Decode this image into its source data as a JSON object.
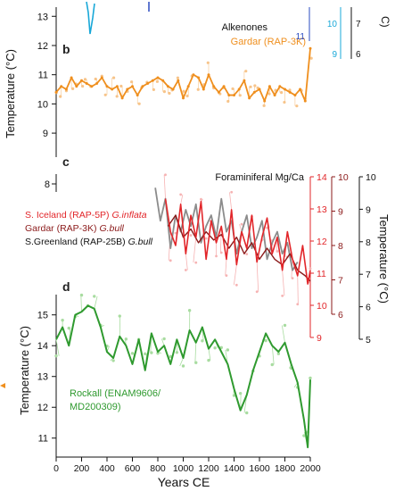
{
  "colors": {
    "orange": "#ef8f1e",
    "orange_light": "#f7c48a",
    "red": "#e2262a",
    "darkred": "#8b1a1a",
    "red_light": "#f6b3b3",
    "gray": "#8c8c8c",
    "green": "#2f9a2f",
    "green_light": "#a8dca0",
    "cyan": "#19a8d8",
    "blue": "#2a4bc1",
    "black": "#111111"
  },
  "panels": {
    "b": {
      "label": "b",
      "title_line1": "Alkenones",
      "title_line2": "Gardar (RAP-3K)",
      "ylabel": "Temperature (°C)",
      "yticks": [
        "13",
        "12",
        "11",
        "10",
        "9"
      ],
      "right_axis_blue_tick": "11",
      "right_axis_cyan_ticks": [
        "10",
        "9"
      ],
      "right_axis_black_ticks": [
        "7",
        "6"
      ],
      "right_axis_unit_fragment": "C)"
    },
    "c": {
      "label": "c",
      "title": "Foraminiferal Mg/Ca",
      "legend": [
        {
          "text": "S. Iceland (RAP-5P) ",
          "species": "G.inflata",
          "color_key": "red"
        },
        {
          "text": "Gardar (RAP-3K) ",
          "species": "G.bull",
          "color_key": "darkred"
        },
        {
          "text": "S.Greenland (RAP-25B) ",
          "species": "G.bull",
          "color_key": "black"
        }
      ],
      "left_ylabel_tick": "8",
      "axis_red_ticks": [
        "14",
        "13",
        "12",
        "11",
        "10",
        "9"
      ],
      "axis_darkred_ticks": [
        "10",
        "9",
        "8",
        "7",
        "6"
      ],
      "axis_black_ticks": [
        "10",
        "9",
        "8",
        "7",
        "6",
        "5"
      ],
      "right_ylabel": "Temperature (°C)"
    },
    "d": {
      "label": "d",
      "legend_line1": "Rockall (ENAM9606/",
      "legend_line2": "MD200309)",
      "ylabel": "Temperature (°C)",
      "yticks": [
        "15",
        "14",
        "13",
        "12",
        "11"
      ]
    }
  },
  "xaxis": {
    "label": "Years CE",
    "ticks": [
      "0",
      "200",
      "400",
      "600",
      "800",
      "1000",
      "1200",
      "1400",
      "1600",
      "1800",
      "2000"
    ]
  },
  "chart_data": [
    {
      "type": "line",
      "panel": "b",
      "xlim": [
        0,
        2000
      ],
      "ylim": [
        8.3,
        13.1
      ],
      "series": [
        {
          "name": "Gardar (RAP-3K)",
          "x": [
            0,
            40,
            80,
            120,
            160,
            200,
            240,
            280,
            320,
            360,
            400,
            440,
            480,
            520,
            560,
            600,
            640,
            680,
            720,
            760,
            800,
            840,
            880,
            920,
            960,
            1000,
            1040,
            1080,
            1120,
            1160,
            1200,
            1240,
            1280,
            1320,
            1360,
            1400,
            1440,
            1480,
            1520,
            1560,
            1600,
            1640,
            1680,
            1720,
            1760,
            1800,
            1840,
            1880,
            1920,
            1960,
            2000
          ],
          "y": [
            10.4,
            10.6,
            10.5,
            10.9,
            10.6,
            10.8,
            10.7,
            10.6,
            10.7,
            10.9,
            10.6,
            10.5,
            10.6,
            10.2,
            10.5,
            10.6,
            10.3,
            10.6,
            10.7,
            10.8,
            10.9,
            10.8,
            10.6,
            10.5,
            10.8,
            10.2,
            10.6,
            11.0,
            10.9,
            10.5,
            11.0,
            10.6,
            10.4,
            10.6,
            10.3,
            10.3,
            10.5,
            10.8,
            10.2,
            10.4,
            10.5,
            10.1,
            10.6,
            10.3,
            10.6,
            10.5,
            10.4,
            10.3,
            10.5,
            10.1,
            11.9
          ]
        }
      ]
    },
    {
      "type": "line",
      "panel": "c",
      "xlim": [
        0,
        2000
      ],
      "ylim": [
        9,
        14
      ],
      "series": [
        {
          "name": "S. Iceland (RAP-5P) G.inflata",
          "x": [
            860,
            900,
            940,
            980,
            1020,
            1060,
            1100,
            1140,
            1180,
            1220,
            1260,
            1300,
            1340,
            1380,
            1420,
            1460,
            1500,
            1540,
            1580,
            1620,
            1660,
            1700,
            1740,
            1780,
            1820,
            1860,
            1900,
            1940,
            1980,
            2000
          ],
          "y": [
            13.2,
            12.0,
            11.5,
            13.0,
            11.2,
            12.6,
            11.8,
            13.1,
            11.0,
            12.4,
            11.6,
            12.2,
            11.0,
            12.8,
            10.8,
            12.0,
            11.4,
            12.6,
            10.9,
            11.8,
            12.5,
            11.2,
            11.8,
            10.6,
            12.0,
            11.0,
            10.4,
            11.5,
            10.1,
            10.6
          ]
        },
        {
          "name": "Gardar (RAP-3K) G.bull",
          "x": [
            880,
            940,
            1000,
            1060,
            1120,
            1180,
            1240,
            1300,
            1360,
            1420,
            1480,
            1540,
            1600,
            1660,
            1720,
            1780,
            1840,
            1900,
            1960,
            2000
          ],
          "y": [
            12.2,
            12.6,
            11.8,
            12.1,
            11.6,
            12.0,
            11.7,
            11.9,
            11.4,
            11.8,
            11.2,
            11.6,
            11.0,
            11.4,
            11.0,
            10.8,
            11.2,
            10.6,
            10.4,
            10.2
          ]
        },
        {
          "name": "S.Greenland (RAP-25B) G.bull",
          "x": [
            780,
            820,
            860,
            900,
            940,
            980,
            1020,
            1060,
            1100,
            1140,
            1180,
            1220,
            1260,
            1300,
            1340,
            1380,
            1420,
            1460,
            1500,
            1540,
            1580,
            1620,
            1660,
            1700,
            1740,
            1780,
            1820,
            1860,
            1900
          ],
          "y": [
            13.6,
            12.4,
            13.2,
            11.4,
            12.6,
            12.0,
            12.8,
            12.2,
            13.0,
            11.6,
            12.2,
            12.6,
            11.8,
            13.2,
            12.0,
            12.4,
            11.2,
            12.0,
            12.6,
            11.4,
            11.8,
            12.4,
            11.0,
            11.6,
            12.0,
            11.2,
            11.6,
            10.6,
            10.9
          ]
        }
      ]
    },
    {
      "type": "line",
      "panel": "d",
      "xlim": [
        0,
        2000
      ],
      "ylim": [
        10.5,
        15.6
      ],
      "series": [
        {
          "name": "Rockall (ENAM9606/ MD200309)",
          "x": [
            0,
            50,
            100,
            150,
            200,
            250,
            300,
            350,
            400,
            450,
            500,
            550,
            600,
            650,
            700,
            750,
            800,
            850,
            900,
            950,
            1000,
            1050,
            1100,
            1150,
            1200,
            1250,
            1300,
            1350,
            1400,
            1450,
            1500,
            1550,
            1600,
            1650,
            1700,
            1750,
            1800,
            1850,
            1900,
            1950,
            1980,
            2000
          ],
          "y": [
            14.2,
            14.6,
            14.0,
            15.0,
            15.1,
            15.3,
            15.2,
            14.6,
            13.8,
            13.6,
            14.3,
            14.0,
            13.4,
            14.2,
            13.2,
            14.4,
            13.8,
            14.0,
            13.4,
            14.2,
            13.6,
            14.5,
            14.1,
            14.6,
            13.9,
            14.2,
            13.8,
            13.4,
            12.6,
            11.9,
            12.4,
            13.2,
            13.8,
            14.4,
            14.0,
            13.8,
            14.1,
            13.4,
            12.8,
            11.6,
            10.7,
            12.9
          ]
        }
      ]
    }
  ]
}
